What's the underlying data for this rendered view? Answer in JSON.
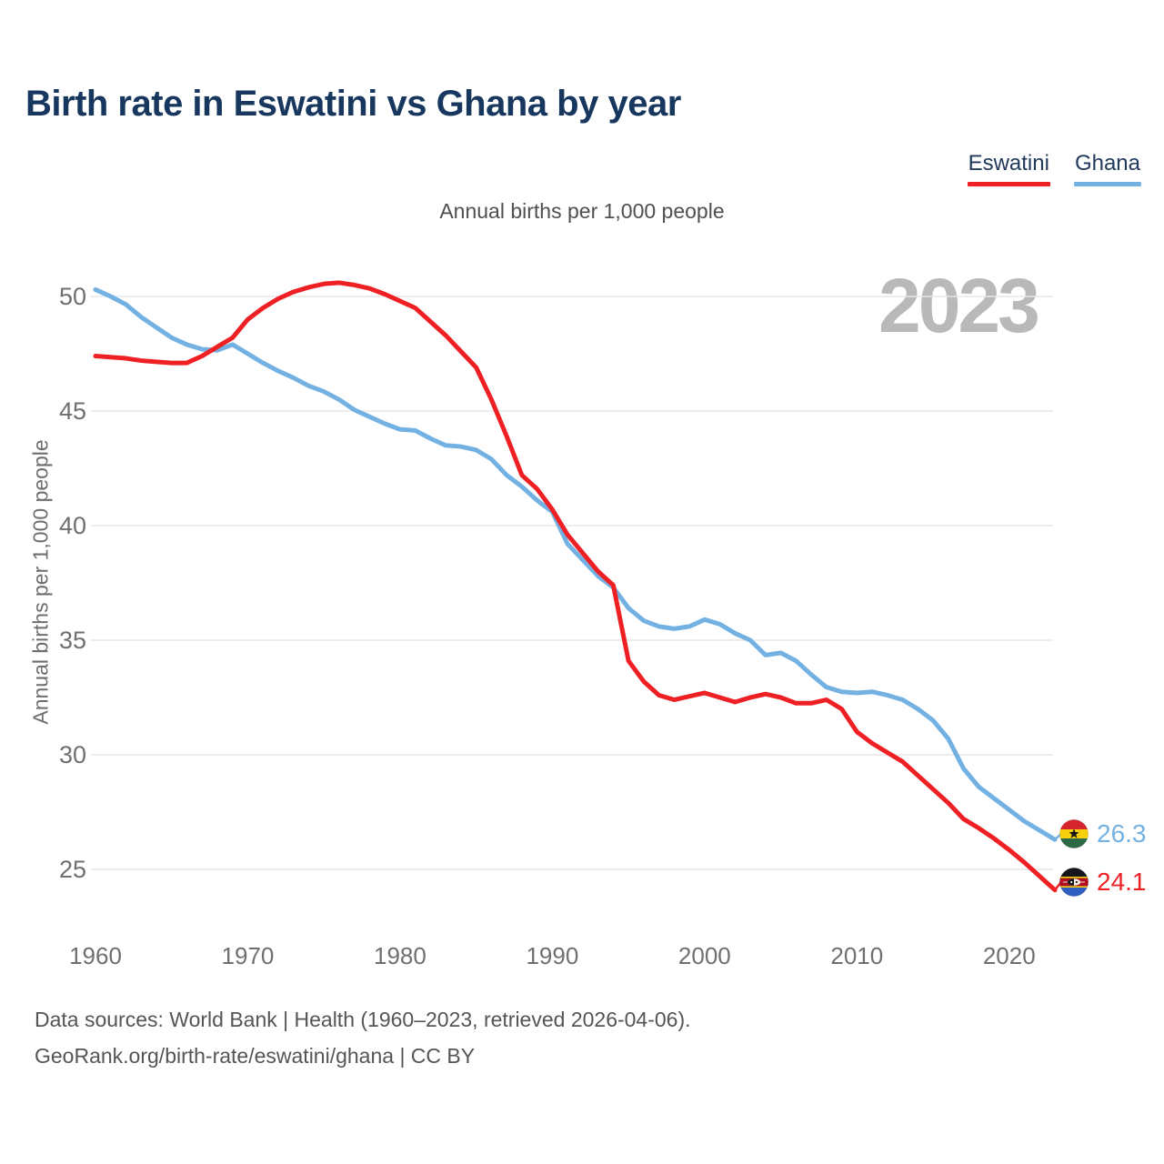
{
  "header": {
    "title": "Birth rate in Eswatini vs Ghana by year",
    "subtitle": "Annual births per 1,000 people"
  },
  "legend": {
    "items": [
      {
        "label": "Eswatini",
        "color": "#ee2024"
      },
      {
        "label": "Ghana",
        "color": "#74b1e3"
      }
    ]
  },
  "watermark": "2023",
  "chart_data": {
    "type": "line",
    "title": "Birth rate in Eswatini vs Ghana by year",
    "subtitle": "Annual births per 1,000 people",
    "ylabel": "Annual births per 1,000 people",
    "xlabel": "",
    "grid": true,
    "legend_position": "top-right",
    "xlim": [
      1960,
      2023
    ],
    "ylim": [
      24,
      51
    ],
    "xticks": [
      1960,
      1970,
      1980,
      1990,
      2000,
      2010,
      2020
    ],
    "yticks": [
      25,
      30,
      35,
      40,
      45,
      50
    ],
    "x": [
      1960,
      1961,
      1962,
      1963,
      1964,
      1965,
      1966,
      1967,
      1968,
      1969,
      1970,
      1971,
      1972,
      1973,
      1974,
      1975,
      1976,
      1977,
      1978,
      1979,
      1980,
      1981,
      1982,
      1983,
      1984,
      1985,
      1986,
      1987,
      1988,
      1989,
      1990,
      1991,
      1992,
      1993,
      1994,
      1995,
      1996,
      1997,
      1998,
      1999,
      2000,
      2001,
      2002,
      2003,
      2004,
      2005,
      2006,
      2007,
      2008,
      2009,
      2010,
      2011,
      2012,
      2013,
      2014,
      2015,
      2016,
      2017,
      2018,
      2019,
      2020,
      2021,
      2022,
      2023
    ],
    "series": [
      {
        "name": "Eswatini",
        "color": "#ee2024",
        "end_label": "24.1",
        "values": [
          47.4,
          47.35,
          47.3,
          47.2,
          47.15,
          47.1,
          47.1,
          47.4,
          47.8,
          48.2,
          49.0,
          49.5,
          49.9,
          50.2,
          50.4,
          50.55,
          50.6,
          50.5,
          50.35,
          50.1,
          49.8,
          49.5,
          48.9,
          48.3,
          47.6,
          46.9,
          45.5,
          43.9,
          42.2,
          41.6,
          40.7,
          39.6,
          38.8,
          38.0,
          37.4,
          34.1,
          33.2,
          32.6,
          32.4,
          32.55,
          32.7,
          32.5,
          32.3,
          32.5,
          32.65,
          32.5,
          32.25,
          32.25,
          32.4,
          32.0,
          31.0,
          30.5,
          30.1,
          29.7,
          29.1,
          28.5,
          27.9,
          27.2,
          26.8,
          26.35,
          25.85,
          25.3,
          24.7,
          24.1
        ]
      },
      {
        "name": "Ghana",
        "color": "#74b1e3",
        "end_label": "26.3",
        "values": [
          50.3,
          50.0,
          49.65,
          49.1,
          48.65,
          48.2,
          47.9,
          47.7,
          47.65,
          47.9,
          47.5,
          47.1,
          46.75,
          46.45,
          46.1,
          45.85,
          45.5,
          45.05,
          44.75,
          44.45,
          44.2,
          44.15,
          43.8,
          43.5,
          43.45,
          43.3,
          42.9,
          42.2,
          41.7,
          41.1,
          40.6,
          39.2,
          38.5,
          37.8,
          37.3,
          36.4,
          35.85,
          35.6,
          35.5,
          35.6,
          35.9,
          35.7,
          35.3,
          35.0,
          34.35,
          34.45,
          34.1,
          33.5,
          32.95,
          32.75,
          32.7,
          32.75,
          32.6,
          32.4,
          32.0,
          31.5,
          30.7,
          29.4,
          28.6,
          28.1,
          27.6,
          27.1,
          26.7,
          26.3
        ]
      }
    ],
    "end_labels": [
      {
        "series": "Ghana",
        "value": "26.3"
      },
      {
        "series": "Eswatini",
        "value": "24.1"
      }
    ]
  },
  "footer": {
    "line1": "Data sources: World Bank | Health (1960–2023, retrieved 2026-04-06).",
    "line2": "GeoRank.org/birth-rate/eswatini/ghana | CC BY"
  }
}
